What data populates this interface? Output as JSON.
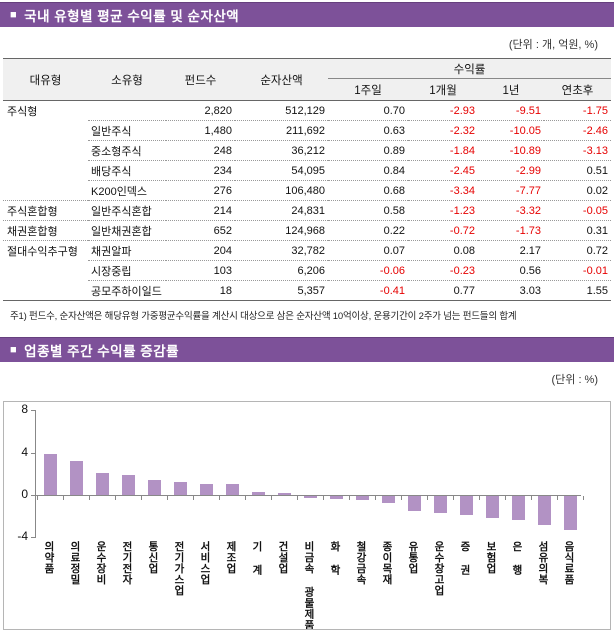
{
  "section1": {
    "bullet": "■",
    "title": "국내 유형별 평균 수익률 및 순자산액",
    "unit": "(단위 : 개, 억원, %)"
  },
  "table": {
    "headers": {
      "type": "대유형",
      "sub_type": "소유형",
      "fund_count": "펀드수",
      "nav": "순자산액",
      "returns_group": "수익률",
      "sub": [
        "1주일",
        "1개월",
        "1년",
        "연초후"
      ]
    },
    "rows": [
      {
        "type": "주식형",
        "sub": "",
        "funds": "2,820",
        "nav": "512,129",
        "r": [
          "0.70",
          "-2.93",
          "-9.51",
          "-1.75"
        ],
        "sep": "indent"
      },
      {
        "type": "",
        "sub": "일반주식",
        "funds": "1,480",
        "nav": "211,692",
        "r": [
          "0.63",
          "-2.32",
          "-10.05",
          "-2.46"
        ],
        "sep": "indent"
      },
      {
        "type": "",
        "sub": "중소형주식",
        "funds": "248",
        "nav": "36,212",
        "r": [
          "0.89",
          "-1.84",
          "-10.89",
          "-3.13"
        ],
        "sep": "indent"
      },
      {
        "type": "",
        "sub": "배당주식",
        "funds": "234",
        "nav": "54,095",
        "r": [
          "0.84",
          "-2.45",
          "-2.99",
          "0.51"
        ],
        "sep": "indent"
      },
      {
        "type": "",
        "sub": "K200인덱스",
        "funds": "276",
        "nav": "106,480",
        "r": [
          "0.68",
          "-3.34",
          "-7.77",
          "0.02"
        ],
        "sep": "full"
      },
      {
        "type": "주식혼합형",
        "sub": "일반주식혼합",
        "funds": "214",
        "nav": "24,831",
        "r": [
          "0.58",
          "-1.23",
          "-3.32",
          "-0.05"
        ],
        "sep": "full"
      },
      {
        "type": "채권혼합형",
        "sub": "일반채권혼합",
        "funds": "652",
        "nav": "124,968",
        "r": [
          "0.22",
          "-0.72",
          "-1.73",
          "0.31"
        ],
        "sep": "full"
      },
      {
        "type": "절대수익추구형",
        "sub": "채권알파",
        "funds": "204",
        "nav": "32,782",
        "r": [
          "0.07",
          "0.08",
          "2.17",
          "0.72"
        ],
        "sep": "indent"
      },
      {
        "type": "",
        "sub": "시장중립",
        "funds": "103",
        "nav": "6,206",
        "r": [
          "-0.06",
          "-0.23",
          "0.56",
          "-0.01"
        ],
        "sep": "indent"
      },
      {
        "type": "",
        "sub": "공모주하이일드",
        "funds": "18",
        "nav": "5,357",
        "r": [
          "-0.41",
          "0.77",
          "3.03",
          "1.55"
        ],
        "sep": "none"
      }
    ],
    "footnote": "주1) 펀드수, 순자산액은 해당유형 가중평균수익률을 계산시 대상으로 삼은 순자산액 10억이상, 운용기간이 2주가 넘는 펀드들의 합계"
  },
  "section2": {
    "bullet": "■",
    "title": "업종별 주간 수익률 증감률",
    "unit": "(단위 : %)"
  },
  "chart_data": {
    "type": "bar",
    "title": "업종별 주간 수익률 증감률",
    "categories": [
      "의약품",
      "의료정밀",
      "운수장비",
      "전기전자",
      "통신업",
      "전기가스업",
      "서비스업",
      "제조업",
      "기 계",
      "건설업",
      "비금속 광물제품",
      "화 학",
      "철강금속",
      "종이목재",
      "유통업",
      "운수창고업",
      "증 권",
      "보험업",
      "은 행",
      "섬유의복",
      "음식료품"
    ],
    "values": [
      3.9,
      3.2,
      2.1,
      1.9,
      1.4,
      1.2,
      1.0,
      1.0,
      0.3,
      0.2,
      -0.2,
      -0.3,
      -0.35,
      -0.7,
      -1.4,
      -1.6,
      -1.75,
      -2.1,
      -2.3,
      -2.7,
      -3.2
    ],
    "ylim": [
      -4,
      8
    ],
    "yticks": [
      "8",
      "4",
      "0",
      "-4"
    ],
    "ytick_values": [
      8,
      4,
      0,
      -4
    ],
    "xlabel": "",
    "ylabel": "",
    "unit": "%",
    "grid": false,
    "legend": false,
    "bar_color": "#b292c4"
  },
  "colors": {
    "section_bar_bg": "#7d5199",
    "negative_value": "#e60000",
    "bar_fill": "#b292c4",
    "header_bg": "#f0f0f0"
  }
}
